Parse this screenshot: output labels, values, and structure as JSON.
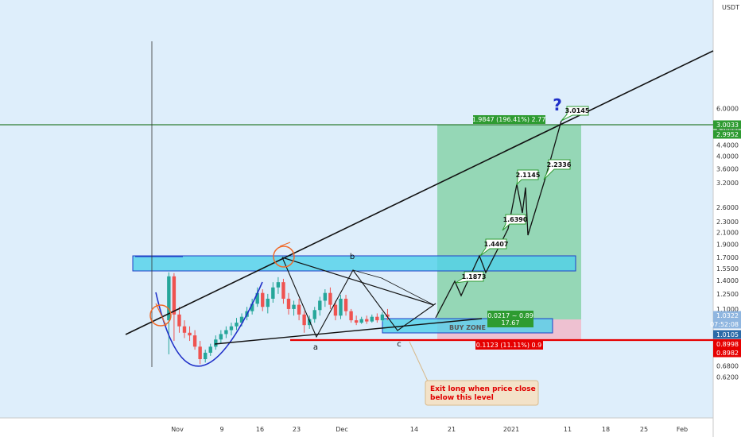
{
  "axis": {
    "unit": "USDT",
    "price_ticks": [
      "6.0000",
      "5.0000",
      "4.4000",
      "4.0000",
      "3.6000",
      "3.2000",
      "2.6000",
      "2.3000",
      "2.1000",
      "1.9000",
      "1.7000",
      "1.5500",
      "1.4000",
      "1.2500",
      "1.1000",
      "0.9000",
      "0.7500",
      "0.6800",
      "0.6200"
    ],
    "date_ticks": [
      "Nov",
      "9",
      "16",
      "23",
      "Dec",
      "14",
      "21",
      "2021",
      "11",
      "18",
      "25",
      "Feb"
    ],
    "price_tags": [
      {
        "text": "3.0033",
        "color": "#2e9b31"
      },
      {
        "text": "2.9952",
        "color": "#2e9b31"
      },
      {
        "text": "1.0322",
        "color": "#8fb6e0"
      },
      {
        "text": "07:52:08",
        "color": "#8fb6e0"
      },
      {
        "text": "1.0105",
        "color": "#2b6aa8"
      },
      {
        "text": "0.8998",
        "color": "#e60000"
      },
      {
        "text": "0.8982",
        "color": "#e60000"
      }
    ]
  },
  "position": {
    "target_label": "1.9847 (196.41%) 2.77",
    "stop_label": "0.1123 (11.11%) 0.9",
    "ratio_label": "0.0217 ~ 0.89",
    "ratio_sub": "17.67",
    "hidden_label": "BUY ZONE"
  },
  "waves": {
    "b": "b",
    "a": "a",
    "c": "c"
  },
  "targets": [
    "1.1873",
    "1.4407",
    "1.6390",
    "2.1145",
    "2.2336",
    "3.0145"
  ],
  "annotations": {
    "question": "?",
    "note_line1": "Exit long when price close",
    "note_line2": "below this level"
  },
  "colors": {
    "background": "#deeefb",
    "zone": "#4fd1ea",
    "profit": "#7ccf9f",
    "loss": "#f1b9c9",
    "stop": "#e60000",
    "resistance": "#2e7d32",
    "bull": "#26a69a",
    "bear": "#ef5350"
  },
  "chart_data": {
    "type": "candlestick",
    "scale": "log",
    "unit": "USDT",
    "x_ticks": [
      "Nov",
      "9",
      "16",
      "23",
      "Dec",
      "14",
      "21",
      "2021",
      "11",
      "18",
      "25",
      "Feb"
    ],
    "ylim": [
      0.58,
      6.0
    ],
    "horizontal_levels": [
      {
        "label": "3.0033",
        "value": 3.0033
      },
      {
        "label": "0.8998",
        "value": 0.8998
      }
    ],
    "projected_targets": [
      1.1873,
      1.4407,
      1.639,
      2.1145,
      2.2336,
      3.0145
    ],
    "position": {
      "entry": 1.0105,
      "target": 2.9952,
      "stop": 0.8982
    },
    "wave_labels": [
      "a",
      "b",
      "c"
    ],
    "candles": [
      {
        "day": -3,
        "o": 1.0,
        "h": 1.5,
        "c": 1.45,
        "l": 0.75
      },
      {
        "day": -2,
        "o": 1.45,
        "h": 1.49,
        "c": 1.05,
        "l": 0.84
      },
      {
        "day": -1,
        "o": 1.05,
        "h": 1.12,
        "c": 0.95,
        "l": 0.9
      },
      {
        "day": 0,
        "o": 0.95,
        "h": 1.0,
        "c": 0.9,
        "l": 0.86
      },
      {
        "day": 1,
        "o": 0.9,
        "h": 0.95,
        "c": 0.88,
        "l": 0.84
      },
      {
        "day": 2,
        "o": 0.88,
        "h": 0.92,
        "c": 0.8,
        "l": 0.78
      },
      {
        "day": 3,
        "o": 0.8,
        "h": 0.84,
        "c": 0.72,
        "l": 0.69
      },
      {
        "day": 4,
        "o": 0.72,
        "h": 0.78,
        "c": 0.76,
        "l": 0.7
      },
      {
        "day": 5,
        "o": 0.76,
        "h": 0.82,
        "c": 0.8,
        "l": 0.74
      },
      {
        "day": 6,
        "o": 0.8,
        "h": 0.88,
        "c": 0.85,
        "l": 0.78
      },
      {
        "day": 7,
        "o": 0.85,
        "h": 0.92,
        "c": 0.89,
        "l": 0.82
      },
      {
        "day": 8,
        "o": 0.89,
        "h": 0.95,
        "c": 0.92,
        "l": 0.86
      },
      {
        "day": 9,
        "o": 0.92,
        "h": 0.98,
        "c": 0.95,
        "l": 0.88
      },
      {
        "day": 10,
        "o": 0.95,
        "h": 1.02,
        "c": 0.98,
        "l": 0.92
      },
      {
        "day": 11,
        "o": 0.98,
        "h": 1.06,
        "c": 1.03,
        "l": 0.95
      },
      {
        "day": 12,
        "o": 1.03,
        "h": 1.12,
        "c": 1.08,
        "l": 1.0
      },
      {
        "day": 13,
        "o": 1.08,
        "h": 1.2,
        "c": 1.15,
        "l": 1.05
      },
      {
        "day": 14,
        "o": 1.15,
        "h": 1.32,
        "c": 1.26,
        "l": 1.12
      },
      {
        "day": 15,
        "o": 1.26,
        "h": 1.3,
        "c": 1.12,
        "l": 1.08
      },
      {
        "day": 16,
        "o": 1.12,
        "h": 1.25,
        "c": 1.2,
        "l": 1.06
      },
      {
        "day": 17,
        "o": 1.2,
        "h": 1.38,
        "c": 1.32,
        "l": 1.16
      },
      {
        "day": 18,
        "o": 1.32,
        "h": 1.44,
        "c": 1.38,
        "l": 1.25
      },
      {
        "day": 19,
        "o": 1.38,
        "h": 1.42,
        "c": 1.2,
        "l": 1.15
      },
      {
        "day": 20,
        "o": 1.2,
        "h": 1.26,
        "c": 1.1,
        "l": 1.05
      },
      {
        "day": 21,
        "o": 1.1,
        "h": 1.18,
        "c": 1.14,
        "l": 1.04
      },
      {
        "day": 22,
        "o": 1.14,
        "h": 1.2,
        "c": 1.05,
        "l": 1.0
      },
      {
        "day": 23,
        "o": 1.05,
        "h": 1.08,
        "c": 0.96,
        "l": 0.9
      },
      {
        "day": 24,
        "o": 0.96,
        "h": 1.04,
        "c": 1.01,
        "l": 0.93
      },
      {
        "day": 25,
        "o": 1.01,
        "h": 1.12,
        "c": 1.09,
        "l": 0.98
      },
      {
        "day": 26,
        "o": 1.09,
        "h": 1.22,
        "c": 1.18,
        "l": 1.04
      },
      {
        "day": 27,
        "o": 1.18,
        "h": 1.3,
        "c": 1.26,
        "l": 1.12
      },
      {
        "day": 28,
        "o": 1.26,
        "h": 1.32,
        "c": 1.14,
        "l": 1.1
      },
      {
        "day": 29,
        "o": 1.14,
        "h": 1.18,
        "c": 1.04,
        "l": 1.0
      },
      {
        "day": 30,
        "o": 1.04,
        "h": 1.24,
        "c": 1.2,
        "l": 1.01
      },
      {
        "day": 31,
        "o": 1.2,
        "h": 1.24,
        "c": 1.08,
        "l": 1.04
      },
      {
        "day": 32,
        "o": 1.08,
        "h": 1.1,
        "c": 1.0,
        "l": 0.98
      },
      {
        "day": 33,
        "o": 1.0,
        "h": 1.04,
        "c": 0.98,
        "l": 0.96
      },
      {
        "day": 34,
        "o": 0.98,
        "h": 1.03,
        "c": 1.01,
        "l": 0.97
      },
      {
        "day": 35,
        "o": 1.01,
        "h": 1.04,
        "c": 0.99,
        "l": 0.97
      },
      {
        "day": 36,
        "o": 0.99,
        "h": 1.05,
        "c": 1.03,
        "l": 0.98
      },
      {
        "day": 37,
        "o": 1.03,
        "h": 1.06,
        "c": 1.0,
        "l": 0.98
      },
      {
        "day": 38,
        "o": 1.0,
        "h": 1.07,
        "c": 1.05,
        "l": 0.99
      },
      {
        "day": 39,
        "o": 1.05,
        "h": 1.1,
        "c": 1.03,
        "l": 1.0
      }
    ]
  }
}
